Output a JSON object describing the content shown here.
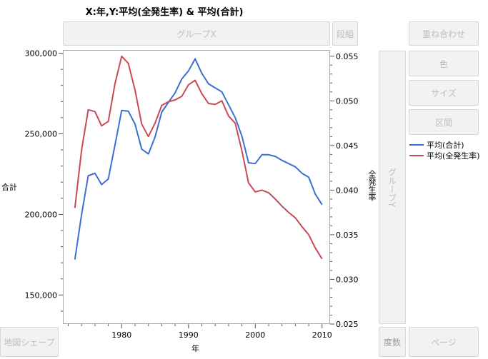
{
  "title": "X:年,Y:平均(全発生率) & 平均(合計)",
  "drop_zones": {
    "group_x": "グループX",
    "wrap": "段組",
    "overlay": "重ね合わせ",
    "color": "色",
    "size": "サイズ",
    "interval": "区間",
    "group_y": "グループY",
    "map_shape": "地図シェープ",
    "freq": "度数",
    "page": "ページ"
  },
  "axes": {
    "x_label": "年",
    "y_left_label": "合計",
    "y_right_label": "全発生率"
  },
  "legend": [
    {
      "label": "平均(合計)",
      "color": "#3b6fd4"
    },
    {
      "label": "平均(全発生率)",
      "color": "#c94a55"
    }
  ],
  "chart_data": {
    "type": "line",
    "x_ticks": [
      1980,
      1990,
      2000,
      2010
    ],
    "xlim": [
      1971.2,
      2011.2
    ],
    "y_left_ticks": [
      "150,000",
      "200,000",
      "250,000",
      "300,000"
    ],
    "y_left_lim": [
      132000,
      302000
    ],
    "y_right_ticks": [
      "0.025",
      "0.030",
      "0.035",
      "0.040",
      "0.045",
      "0.050",
      "0.055"
    ],
    "y_right_lim": [
      0.025,
      0.0557
    ],
    "series": [
      {
        "name": "平均(合計)",
        "axis": "left",
        "color": "#3b6fd4",
        "x": [
          1973,
          1974,
          1975,
          1976,
          1977,
          1978,
          1979,
          1980,
          1981,
          1982,
          1983,
          1984,
          1985,
          1986,
          1987,
          1988,
          1989,
          1990,
          1991,
          1992,
          1993,
          1994,
          1995,
          1996,
          1997,
          1998,
          1999,
          2000,
          2001,
          2002,
          2003,
          2004,
          2005,
          2006,
          2007,
          2008,
          2009,
          2010
        ],
        "y": [
          172000,
          200000,
          224000,
          225500,
          218500,
          222000,
          243000,
          264500,
          264000,
          256000,
          240500,
          237500,
          248000,
          263500,
          269500,
          275500,
          284000,
          289000,
          296500,
          287500,
          281000,
          278500,
          276000,
          268000,
          260000,
          248500,
          232000,
          231500,
          237000,
          237000,
          236000,
          233500,
          231500,
          229500,
          225500,
          223000,
          212500,
          206000
        ]
      },
      {
        "name": "平均(全発生率)",
        "axis": "right",
        "color": "#c94a55",
        "x": [
          1973,
          1974,
          1975,
          1976,
          1977,
          1978,
          1979,
          1980,
          1981,
          1982,
          1983,
          1984,
          1985,
          1986,
          1987,
          1988,
          1989,
          1990,
          1991,
          1992,
          1993,
          1994,
          1995,
          1996,
          1997,
          1998,
          1999,
          2000,
          2001,
          2002,
          2003,
          2004,
          2005,
          2006,
          2007,
          2008,
          2009,
          2010
        ],
        "y": [
          0.038,
          0.0445,
          0.049,
          0.0488,
          0.0472,
          0.0477,
          0.0519,
          0.055,
          0.0542,
          0.0512,
          0.0474,
          0.046,
          0.0475,
          0.0495,
          0.0499,
          0.0501,
          0.0505,
          0.0518,
          0.0523,
          0.0508,
          0.0497,
          0.0496,
          0.05,
          0.0483,
          0.0475,
          0.0444,
          0.0408,
          0.0398,
          0.04,
          0.0397,
          0.039,
          0.0382,
          0.0375,
          0.0369,
          0.0359,
          0.035,
          0.0335,
          0.0323
        ]
      }
    ]
  }
}
